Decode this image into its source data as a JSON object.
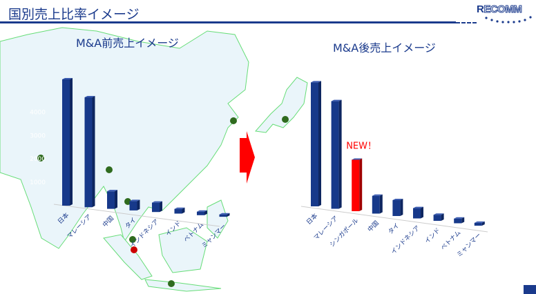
{
  "header": {
    "title": "国別売上比率イメージ",
    "logo": "RECOMM"
  },
  "colors": {
    "bar": "#17398a",
    "bar_side": "#0e2660",
    "highlight": "#ff0000",
    "map_land": "#eaf5fa",
    "map_border": "#66dd77",
    "title": "#1a3a8c"
  },
  "chart_data": [
    {
      "type": "bar",
      "title": "M&A前売上イメージ",
      "categories": [
        "日本",
        "マレーシア",
        "中国",
        "タイ",
        "インドネシア",
        "インド",
        "ベトナム",
        "ミャンマー"
      ],
      "values": [
        5400,
        4700,
        750,
        400,
        400,
        200,
        150,
        100
      ],
      "yticks": [
        1000,
        2000,
        3000,
        4000
      ],
      "ylim": [
        0,
        5500
      ],
      "grid": false
    },
    {
      "type": "bar",
      "title": "M&A後売上イメージ",
      "categories": [
        "日本",
        "マレーシア",
        "シンガポール",
        "中国",
        "タイ",
        "インドネシア",
        "インド",
        "ベトナム",
        "ミャンマー"
      ],
      "values": [
        5300,
        4600,
        2200,
        760,
        680,
        440,
        260,
        200,
        120
      ],
      "ylim": [
        0,
        5500
      ],
      "highlight_index": 2,
      "annotation": "NEW！",
      "grid": false
    }
  ],
  "arrow": {
    "icon": "right-arrow-icon"
  }
}
